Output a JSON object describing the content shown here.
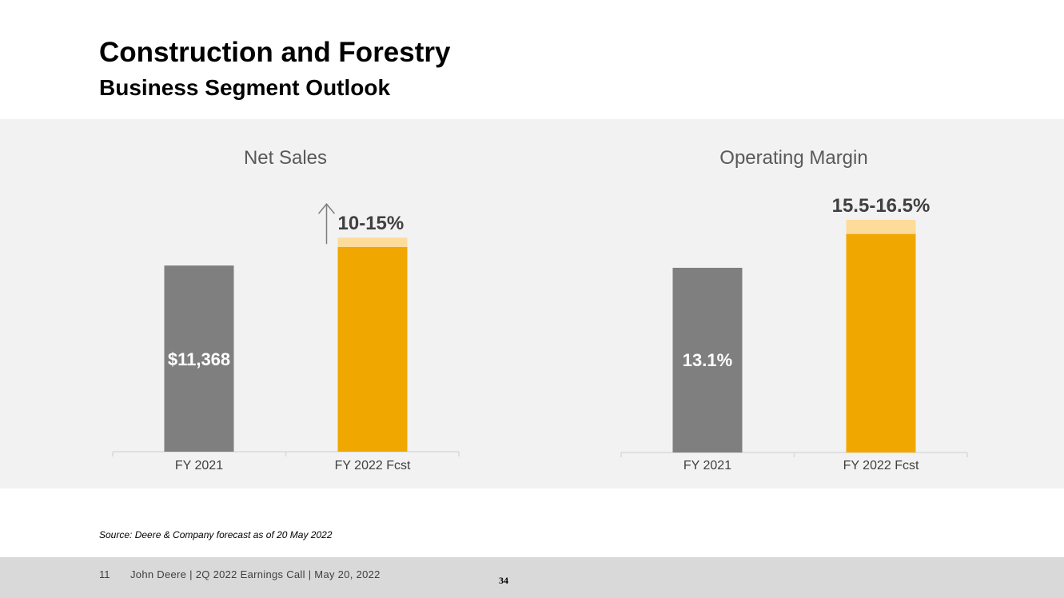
{
  "header": {
    "title": "Construction and Forestry",
    "subtitle": "Business Segment Outlook"
  },
  "chart_data": [
    {
      "type": "bar",
      "title": "Net Sales",
      "categories": [
        "FY 2021",
        "FY 2022 Fcst"
      ],
      "series": [
        {
          "values": [
            11368,
            12505
          ]
        },
        {
          "values": [
            0,
            568
          ]
        }
      ],
      "bar_labels": [
        "$11,368",
        ""
      ],
      "range_label": "10-15%",
      "range_indicator": "up-arrow",
      "colors": {
        "actual": "#7f7f7f",
        "forecast": "#f0a800",
        "range": "#fddc9a",
        "arrow": "#7f7f7f"
      },
      "xlabel": "",
      "ylabel": "",
      "ylim": [
        0,
        14500
      ],
      "grid": false,
      "legend": "none"
    },
    {
      "type": "bar",
      "title": "Operating Margin",
      "categories": [
        "FY 2021",
        "FY 2022 Fcst"
      ],
      "series": [
        {
          "values": [
            13.1,
            15.5
          ]
        },
        {
          "values": [
            0,
            1.0
          ]
        }
      ],
      "bar_labels": [
        "13.1%",
        ""
      ],
      "range_label": "15.5-16.5%",
      "colors": {
        "actual": "#7f7f7f",
        "forecast": "#f0a800",
        "range": "#fddc9a"
      },
      "xlabel": "",
      "ylabel": "",
      "ylim": [
        0,
        16.5
      ],
      "grid": false,
      "legend": "none"
    }
  ],
  "source_note": "Source: Deere & Company forecast as of 20 May 2022",
  "footer": {
    "slide_number": "11",
    "text": "John Deere | 2Q 2022 Earnings Call | May 20, 2022",
    "page_number": "34"
  }
}
